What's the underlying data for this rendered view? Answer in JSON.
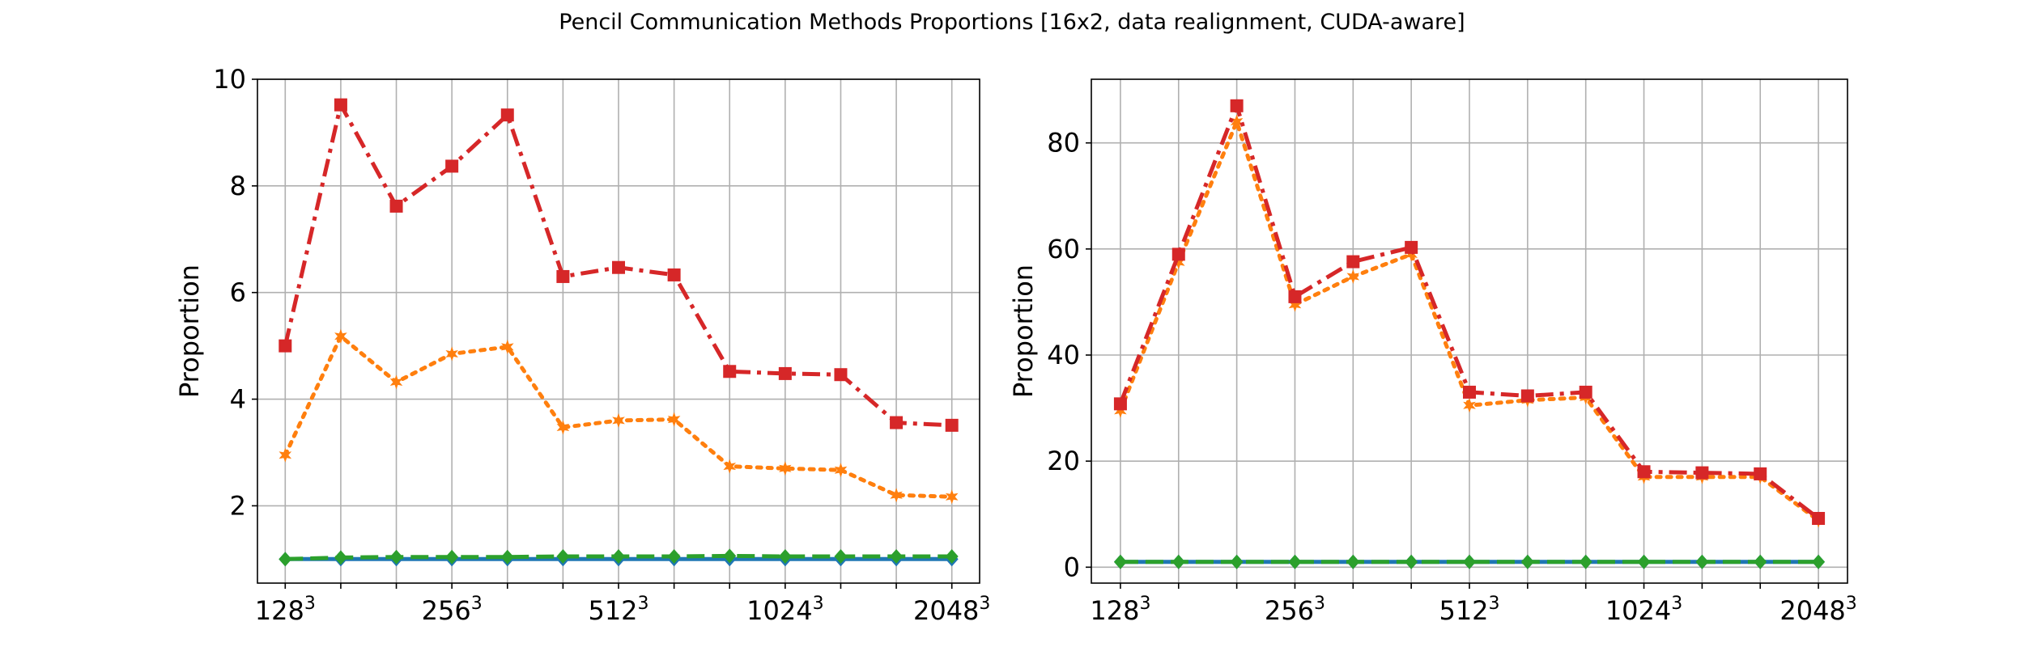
{
  "figure": {
    "title": "Pencil Communication Methods Proportions [16x2, data realignment, CUDA-aware]"
  },
  "colors": {
    "blue": "#1f77b4",
    "orange": "#ff7f0e",
    "green": "#2ca02c",
    "red": "#d62728",
    "grid": "#b0b0b0"
  },
  "chart_data": [
    {
      "type": "line",
      "title": "",
      "xlabel": "",
      "ylabel": "Proportion",
      "x": [
        0,
        1,
        2,
        3,
        4,
        5,
        6,
        7,
        8,
        9,
        10,
        11,
        12
      ],
      "xlim": [
        -0.5,
        12.5
      ],
      "ylim": [
        0.55,
        10.0
      ],
      "xticks": [
        0,
        1,
        2,
        3,
        4,
        5,
        6,
        7,
        8,
        9,
        10,
        11,
        12
      ],
      "xtick_labels": [
        {
          "x": 0,
          "base": "128",
          "exp": "3"
        },
        {
          "x": 3,
          "base": "256",
          "exp": "3"
        },
        {
          "x": 6,
          "base": "512",
          "exp": "3"
        },
        {
          "x": 9,
          "base": "1024",
          "exp": "3"
        },
        {
          "x": 12,
          "base": "2048",
          "exp": "3"
        }
      ],
      "yticks": [
        2,
        4,
        6,
        8,
        10
      ],
      "ytick_labels": [
        "2",
        "4",
        "6",
        "8",
        "10"
      ],
      "grid": true,
      "series": [
        {
          "color_key": "blue",
          "linestyle": "solid",
          "marker": "diamond",
          "values": [
            1,
            1,
            1,
            1,
            1,
            1,
            1,
            1,
            1,
            1,
            1,
            1,
            1
          ]
        },
        {
          "color_key": "green",
          "linestyle": "dashed",
          "marker": "diamond",
          "values": [
            1,
            1.03,
            1.04,
            1.04,
            1.04,
            1.05,
            1.05,
            1.05,
            1.06,
            1.05,
            1.05,
            1.05,
            1.05
          ]
        },
        {
          "color_key": "orange",
          "linestyle": "dotted",
          "marker": "star",
          "values": [
            2.95,
            5.18,
            4.32,
            4.85,
            4.98,
            3.47,
            3.6,
            3.62,
            2.74,
            2.7,
            2.67,
            2.2,
            2.17
          ]
        },
        {
          "color_key": "red",
          "linestyle": "dashdot",
          "marker": "square",
          "values": [
            5.0,
            9.52,
            7.62,
            8.37,
            9.33,
            6.3,
            6.47,
            6.33,
            4.52,
            4.48,
            4.46,
            3.56,
            3.51
          ]
        }
      ]
    },
    {
      "type": "line",
      "title": "",
      "xlabel": "",
      "ylabel": "Proportion",
      "x": [
        0,
        1,
        2,
        3,
        4,
        5,
        6,
        7,
        8,
        9,
        10,
        11,
        12
      ],
      "xlim": [
        -0.5,
        12.5
      ],
      "ylim": [
        -3,
        92
      ],
      "xticks": [
        0,
        1,
        2,
        3,
        4,
        5,
        6,
        7,
        8,
        9,
        10,
        11,
        12
      ],
      "xtick_labels": [
        {
          "x": 0,
          "base": "128",
          "exp": "3"
        },
        {
          "x": 3,
          "base": "256",
          "exp": "3"
        },
        {
          "x": 6,
          "base": "512",
          "exp": "3"
        },
        {
          "x": 9,
          "base": "1024",
          "exp": "3"
        },
        {
          "x": 12,
          "base": "2048",
          "exp": "3"
        }
      ],
      "yticks": [
        0,
        20,
        40,
        60,
        80
      ],
      "ytick_labels": [
        "0",
        "20",
        "40",
        "60",
        "80"
      ],
      "grid": true,
      "series": [
        {
          "color_key": "blue",
          "linestyle": "solid",
          "marker": "diamond",
          "values": [
            1,
            1,
            1,
            1,
            1,
            1,
            1,
            1,
            1,
            1,
            1,
            1,
            1
          ]
        },
        {
          "color_key": "green",
          "linestyle": "dashed",
          "marker": "diamond",
          "values": [
            1,
            1,
            1,
            1,
            1,
            1,
            1,
            1,
            1,
            1,
            1,
            1,
            1
          ]
        },
        {
          "color_key": "orange",
          "linestyle": "dotted",
          "marker": "star",
          "values": [
            29.5,
            57.5,
            84.0,
            49.5,
            54.8,
            59.0,
            30.5,
            31.5,
            32.0,
            17.0,
            17.0,
            17.0,
            8.8
          ]
        },
        {
          "color_key": "red",
          "linestyle": "dashdot",
          "marker": "square",
          "values": [
            30.8,
            59.0,
            87.0,
            51.0,
            57.6,
            60.3,
            33.0,
            32.3,
            33.0,
            18.0,
            17.8,
            17.6,
            9.2
          ]
        }
      ]
    }
  ]
}
